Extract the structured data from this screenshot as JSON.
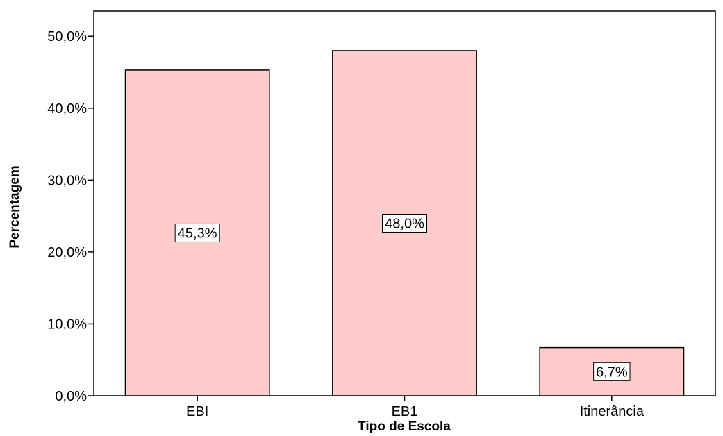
{
  "chart_data": {
    "type": "bar",
    "title": "",
    "xlabel": "Tipo de Escola",
    "ylabel": "Percentagem",
    "categories": [
      "EBI",
      "EB1",
      "Itinerância"
    ],
    "values": [
      45.3,
      48.0,
      6.7
    ],
    "data_labels": [
      "45,3%",
      "48,0%",
      "6,7%"
    ],
    "yticks": [
      0,
      10,
      20,
      30,
      40,
      50
    ],
    "ytick_labels": [
      "0,0%",
      "10,0%",
      "20,0%",
      "30,0%",
      "40,0%",
      "50,0%"
    ],
    "ylim": [
      0,
      53.5
    ],
    "grid": false,
    "bar_color": "#ffcccc",
    "bar_edge_color": "#000000"
  }
}
